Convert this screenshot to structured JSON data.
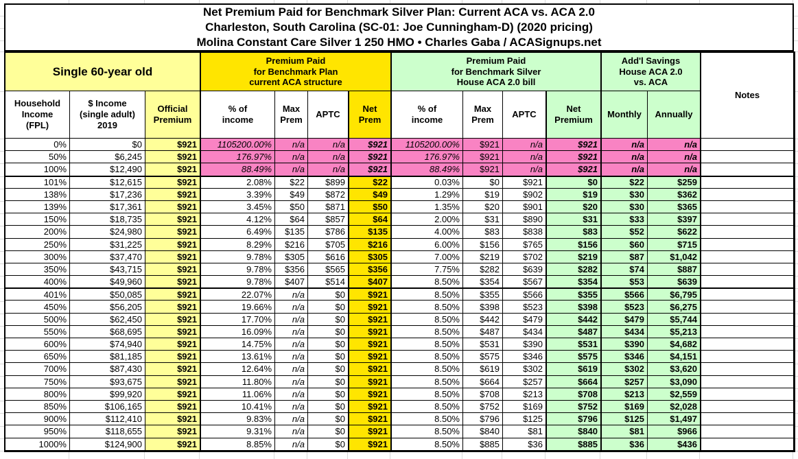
{
  "title": {
    "line1": "Net Premium Paid for Benchmark Silver Plan: Current ACA vs. ACA 2.0",
    "line2": "Charleston, South Carolina (SC-01: Joe Cunningham-D) (2020 pricing)",
    "line3": "Molina Constant Care Silver 1 250 HMO • Charles Gaba / ACASignups.net"
  },
  "groups": {
    "single": "Single 60-year old",
    "aca": "Premium Paid\nfor Benchmark Plan\ncurrent ACA structure",
    "aca2": "Premium Paid\nfor Benchmark Silver\nHouse ACA 2.0 bill",
    "savings": "Add'l Savings\nHouse ACA 2.0\nvs. ACA",
    "notes": "Notes"
  },
  "columns": [
    "Household\nIncome\n(FPL)",
    "$ Income\n(single adult)\n2019",
    "Official\nPremium",
    "% of\nincome",
    "Max\nPrem",
    "APTC",
    "Net\nPrem",
    "% of\nincome",
    "Max\nPrem",
    "APTC",
    "Net\nPremium",
    "Monthly",
    "Annually"
  ],
  "colors": {
    "pale_yellow": "#FFFF99",
    "gold": "#FFE500",
    "light_green": "#CCFFCC",
    "pink": "#F983C3",
    "gridline": "#d9d9d9",
    "border": "#000000"
  },
  "rows": [
    {
      "pink": true,
      "cells": [
        "0%",
        "$0",
        "$921",
        "1105200.00%",
        "n/a",
        "n/a",
        "$921",
        "1105200.00%",
        "$921",
        "n/a",
        "$921",
        "n/a",
        "n/a",
        ""
      ]
    },
    {
      "pink": true,
      "cells": [
        "50%",
        "$6,245",
        "$921",
        "176.97%",
        "n/a",
        "n/a",
        "$921",
        "176.97%",
        "$921",
        "n/a",
        "$921",
        "n/a",
        "n/a",
        ""
      ]
    },
    {
      "pink": true,
      "cells": [
        "100%",
        "$12,490",
        "$921",
        "88.49%",
        "n/a",
        "n/a",
        "$921",
        "88.49%",
        "$921",
        "n/a",
        "$921",
        "n/a",
        "n/a",
        ""
      ]
    },
    {
      "pink": false,
      "cells": [
        "101%",
        "$12,615",
        "$921",
        "2.08%",
        "$22",
        "$899",
        "$22",
        "0.03%",
        "$0",
        "$921",
        "$0",
        "$22",
        "$259",
        ""
      ]
    },
    {
      "pink": false,
      "cells": [
        "138%",
        "$17,236",
        "$921",
        "3.39%",
        "$49",
        "$872",
        "$49",
        "1.29%",
        "$19",
        "$902",
        "$19",
        "$30",
        "$362",
        ""
      ]
    },
    {
      "pink": false,
      "cells": [
        "139%",
        "$17,361",
        "$921",
        "3.45%",
        "$50",
        "$871",
        "$50",
        "1.35%",
        "$20",
        "$901",
        "$20",
        "$30",
        "$365",
        ""
      ]
    },
    {
      "pink": false,
      "cells": [
        "150%",
        "$18,735",
        "$921",
        "4.12%",
        "$64",
        "$857",
        "$64",
        "2.00%",
        "$31",
        "$890",
        "$31",
        "$33",
        "$397",
        ""
      ]
    },
    {
      "pink": false,
      "cells": [
        "200%",
        "$24,980",
        "$921",
        "6.49%",
        "$135",
        "$786",
        "$135",
        "4.00%",
        "$83",
        "$838",
        "$83",
        "$52",
        "$622",
        ""
      ]
    },
    {
      "pink": false,
      "cells": [
        "250%",
        "$31,225",
        "$921",
        "8.29%",
        "$216",
        "$705",
        "$216",
        "6.00%",
        "$156",
        "$765",
        "$156",
        "$60",
        "$715",
        ""
      ]
    },
    {
      "pink": false,
      "cells": [
        "300%",
        "$37,470",
        "$921",
        "9.78%",
        "$305",
        "$616",
        "$305",
        "7.00%",
        "$219",
        "$702",
        "$219",
        "$87",
        "$1,042",
        ""
      ]
    },
    {
      "pink": false,
      "cells": [
        "350%",
        "$43,715",
        "$921",
        "9.78%",
        "$356",
        "$565",
        "$356",
        "7.75%",
        "$282",
        "$639",
        "$282",
        "$74",
        "$887",
        ""
      ]
    },
    {
      "pink": false,
      "cells": [
        "400%",
        "$49,960",
        "$921",
        "9.78%",
        "$407",
        "$514",
        "$407",
        "8.50%",
        "$354",
        "$567",
        "$354",
        "$53",
        "$639",
        ""
      ]
    },
    {
      "pink": false,
      "cells": [
        "401%",
        "$50,085",
        "$921",
        "22.07%",
        "n/a",
        "$0",
        "$921",
        "8.50%",
        "$355",
        "$566",
        "$355",
        "$566",
        "$6,795",
        ""
      ]
    },
    {
      "pink": false,
      "cells": [
        "450%",
        "$56,205",
        "$921",
        "19.66%",
        "n/a",
        "$0",
        "$921",
        "8.50%",
        "$398",
        "$523",
        "$398",
        "$523",
        "$6,275",
        ""
      ]
    },
    {
      "pink": false,
      "cells": [
        "500%",
        "$62,450",
        "$921",
        "17.70%",
        "n/a",
        "$0",
        "$921",
        "8.50%",
        "$442",
        "$479",
        "$442",
        "$479",
        "$5,744",
        ""
      ]
    },
    {
      "pink": false,
      "cells": [
        "550%",
        "$68,695",
        "$921",
        "16.09%",
        "n/a",
        "$0",
        "$921",
        "8.50%",
        "$487",
        "$434",
        "$487",
        "$434",
        "$5,213",
        ""
      ]
    },
    {
      "pink": false,
      "cells": [
        "600%",
        "$74,940",
        "$921",
        "14.75%",
        "n/a",
        "$0",
        "$921",
        "8.50%",
        "$531",
        "$390",
        "$531",
        "$390",
        "$4,682",
        ""
      ]
    },
    {
      "pink": false,
      "cells": [
        "650%",
        "$81,185",
        "$921",
        "13.61%",
        "n/a",
        "$0",
        "$921",
        "8.50%",
        "$575",
        "$346",
        "$575",
        "$346",
        "$4,151",
        ""
      ]
    },
    {
      "pink": false,
      "cells": [
        "700%",
        "$87,430",
        "$921",
        "12.64%",
        "n/a",
        "$0",
        "$921",
        "8.50%",
        "$619",
        "$302",
        "$619",
        "$302",
        "$3,620",
        ""
      ]
    },
    {
      "pink": false,
      "cells": [
        "750%",
        "$93,675",
        "$921",
        "11.80%",
        "n/a",
        "$0",
        "$921",
        "8.50%",
        "$664",
        "$257",
        "$664",
        "$257",
        "$3,090",
        ""
      ]
    },
    {
      "pink": false,
      "cells": [
        "800%",
        "$99,920",
        "$921",
        "11.06%",
        "n/a",
        "$0",
        "$921",
        "8.50%",
        "$708",
        "$213",
        "$708",
        "$213",
        "$2,559",
        ""
      ]
    },
    {
      "pink": false,
      "cells": [
        "850%",
        "$106,165",
        "$921",
        "10.41%",
        "n/a",
        "$0",
        "$921",
        "8.50%",
        "$752",
        "$169",
        "$752",
        "$169",
        "$2,028",
        ""
      ]
    },
    {
      "pink": false,
      "cells": [
        "900%",
        "$112,410",
        "$921",
        "9.83%",
        "n/a",
        "$0",
        "$921",
        "8.50%",
        "$796",
        "$125",
        "$796",
        "$125",
        "$1,497",
        ""
      ]
    },
    {
      "pink": false,
      "cells": [
        "950%",
        "$118,655",
        "$921",
        "9.31%",
        "n/a",
        "$0",
        "$921",
        "8.50%",
        "$840",
        "$81",
        "$840",
        "$81",
        "$966",
        ""
      ]
    },
    {
      "pink": false,
      "cells": [
        "1000%",
        "$124,900",
        "$921",
        "8.85%",
        "n/a",
        "$0",
        "$921",
        "8.50%",
        "$885",
        "$36",
        "$885",
        "$36",
        "$436",
        ""
      ]
    }
  ]
}
